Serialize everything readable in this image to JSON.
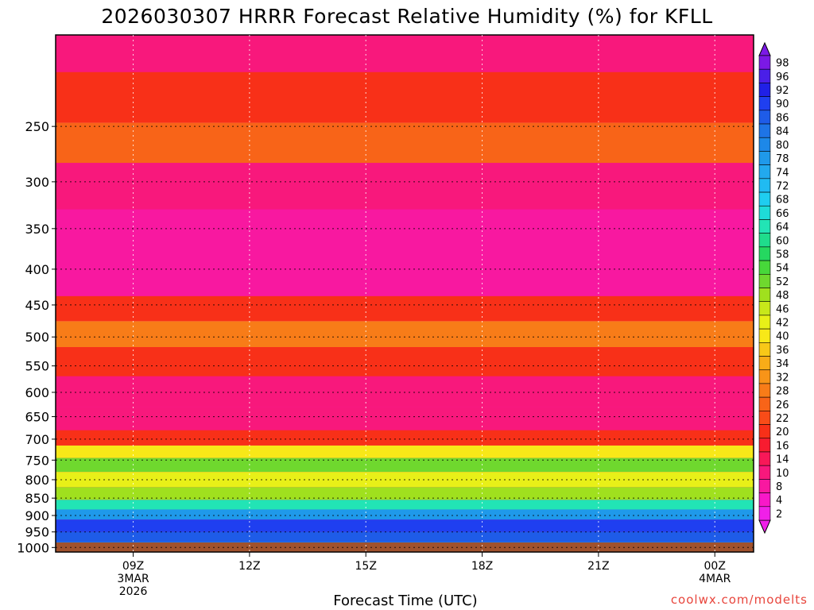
{
  "chart_data": {
    "type": "heatmap",
    "title": "2026030307 HRRR Forecast Relative Humidity (%) for KFLL",
    "xlabel": "Forecast Time (UTC)",
    "ylabel": "",
    "x_ticks": [
      {
        "lines": [
          "09Z",
          "3MAR",
          "2026"
        ],
        "hour": 9
      },
      {
        "lines": [
          "12Z"
        ],
        "hour": 12
      },
      {
        "lines": [
          "15Z"
        ],
        "hour": 15
      },
      {
        "lines": [
          "18Z"
        ],
        "hour": 18
      },
      {
        "lines": [
          "21Z"
        ],
        "hour": 21
      },
      {
        "lines": [
          "00Z",
          "4MAR"
        ],
        "hour": 24
      }
    ],
    "xlim_hours": [
      7,
      25
    ],
    "y_ticks": [
      250,
      300,
      350,
      400,
      450,
      500,
      550,
      600,
      650,
      700,
      750,
      800,
      850,
      900,
      950,
      1000
    ],
    "ylim_hpa": [
      185,
      1015
    ],
    "y_scale": "log",
    "grid": true,
    "colorbar_labels": [
      98,
      96,
      92,
      90,
      86,
      84,
      80,
      78,
      74,
      72,
      68,
      66,
      64,
      60,
      58,
      54,
      52,
      48,
      46,
      42,
      40,
      36,
      34,
      32,
      28,
      26,
      22,
      20,
      16,
      14,
      10,
      8,
      4,
      2
    ],
    "colorbar_colors": [
      "#7b19e6",
      "#4a1fe8",
      "#2020e6",
      "#1f3ff0",
      "#1e5ce8",
      "#1e74e6",
      "#1d88e8",
      "#1f99ea",
      "#22a9ee",
      "#20bbf2",
      "#1fcdf0",
      "#1edcd8",
      "#22e4b5",
      "#1fdc8c",
      "#25d860",
      "#47d83a",
      "#6fd82e",
      "#a0e01e",
      "#c8e81a",
      "#e8f018",
      "#f8e818",
      "#f8c818",
      "#f8ac18",
      "#f89418",
      "#f87c18",
      "#f86418",
      "#f84c18",
      "#f83018",
      "#f81c30",
      "#f81858",
      "#f8187c",
      "#f818a0",
      "#f818c8",
      "#f020e8"
    ],
    "rh_profile": [
      {
        "hpa": 190,
        "rh": 10
      },
      {
        "hpa": 230,
        "rh": 18
      },
      {
        "hpa": 265,
        "rh": 24
      },
      {
        "hpa": 300,
        "rh": 10
      },
      {
        "hpa": 360,
        "rh": 6
      },
      {
        "hpa": 420,
        "rh": 6
      },
      {
        "hpa": 455,
        "rh": 18
      },
      {
        "hpa": 495,
        "rh": 27
      },
      {
        "hpa": 540,
        "rh": 18
      },
      {
        "hpa": 600,
        "rh": 10
      },
      {
        "hpa": 660,
        "rh": 10
      },
      {
        "hpa": 700,
        "rh": 18
      },
      {
        "hpa": 730,
        "rh": 38
      },
      {
        "hpa": 760,
        "rh": 52
      },
      {
        "hpa": 800,
        "rh": 42
      },
      {
        "hpa": 840,
        "rh": 48
      },
      {
        "hpa": 870,
        "rh": 62
      },
      {
        "hpa": 895,
        "rh": 76
      },
      {
        "hpa": 930,
        "rh": 90
      },
      {
        "hpa": 970,
        "rh": 86
      },
      {
        "hpa": 995,
        "rh": 80
      },
      {
        "hpa": 1005,
        "rh": 70
      }
    ],
    "ground_color": "#a0522d"
  },
  "credit": "coolwx.com/modelts"
}
